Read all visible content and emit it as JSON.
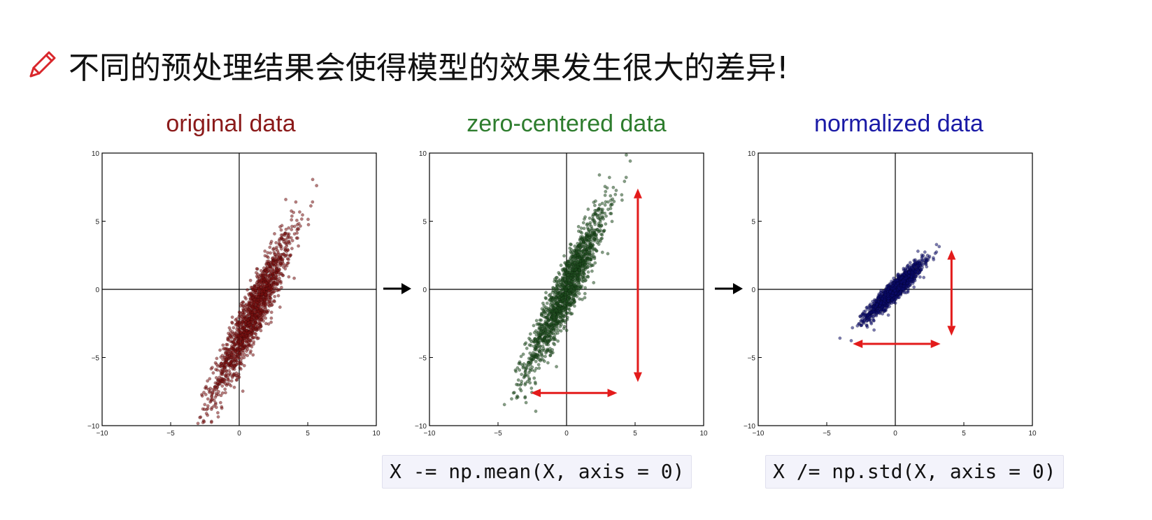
{
  "headline": {
    "text": "不同的预处理结果会使得模型的效果发生很大的差异!",
    "icon": "pencil-icon",
    "icon_color": "#d9262b"
  },
  "code": {
    "mean_line": "X -= np.mean(X, axis = 0)",
    "std_line": "X /= np.std(X, axis = 0)"
  },
  "chart_data": [
    {
      "type": "scatter",
      "title": "original data",
      "title_color": "#8b1a1a",
      "point_color": "#7a1010",
      "xlim": [
        -10,
        10
      ],
      "ylim": [
        -10,
        10
      ],
      "xticks": [
        "−10",
        "−5",
        "0",
        "5",
        "10"
      ],
      "yticks": [
        "10",
        "5",
        "0",
        "−5",
        "−10"
      ],
      "distribution": {
        "mean_x": 1.0,
        "mean_y": -1.8,
        "std_x": 1.45,
        "std_y": 3.0,
        "correlation": 0.93,
        "n_points": 1500
      },
      "arrows": []
    },
    {
      "type": "scatter",
      "title": "zero-centered data",
      "title_color": "#2e7d2e",
      "point_color": "#1e4d1e",
      "xlim": [
        -10,
        10
      ],
      "ylim": [
        -10,
        10
      ],
      "xticks": [
        "−10",
        "−5",
        "0",
        "5",
        "10"
      ],
      "yticks": [
        "10",
        "5",
        "0",
        "−5",
        "−10"
      ],
      "distribution": {
        "mean_x": 0.0,
        "mean_y": 0.0,
        "std_x": 1.45,
        "std_y": 3.0,
        "correlation": 0.93,
        "n_points": 1500
      },
      "arrows": [
        {
          "x1": 5.2,
          "y1": -6.8,
          "x2": 5.2,
          "y2": 7.4,
          "color": "#e31b1b"
        },
        {
          "x1": -2.6,
          "y1": -7.6,
          "x2": 3.7,
          "y2": -7.6,
          "color": "#e31b1b"
        }
      ]
    },
    {
      "type": "scatter",
      "title": "normalized data",
      "title_color": "#1a1aa6",
      "point_color": "#0b0b6b",
      "xlim": [
        -10,
        10
      ],
      "ylim": [
        -10,
        10
      ],
      "xticks": [
        "−10",
        "−5",
        "0",
        "5",
        "10"
      ],
      "yticks": [
        "10",
        "5",
        "0",
        "−5",
        "−10"
      ],
      "distribution": {
        "mean_x": 0.0,
        "mean_y": 0.0,
        "std_x": 1.0,
        "std_y": 1.0,
        "correlation": 0.93,
        "n_points": 1500
      },
      "arrows": [
        {
          "x1": 4.1,
          "y1": -3.4,
          "x2": 4.1,
          "y2": 2.9,
          "color": "#e31b1b"
        },
        {
          "x1": -3.1,
          "y1": -4.0,
          "x2": 3.3,
          "y2": -4.0,
          "color": "#e31b1b"
        }
      ]
    }
  ]
}
